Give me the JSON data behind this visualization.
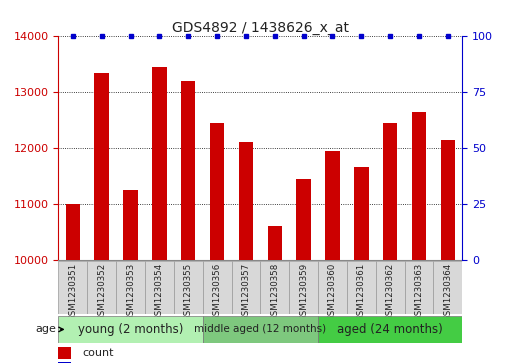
{
  "title": "GDS4892 / 1438626_x_at",
  "samples": [
    "GSM1230351",
    "GSM1230352",
    "GSM1230353",
    "GSM1230354",
    "GSM1230355",
    "GSM1230356",
    "GSM1230357",
    "GSM1230358",
    "GSM1230359",
    "GSM1230360",
    "GSM1230361",
    "GSM1230362",
    "GSM1230363",
    "GSM1230364"
  ],
  "counts": [
    11000,
    13350,
    11250,
    13450,
    13200,
    12450,
    12100,
    10600,
    11450,
    11950,
    11650,
    12450,
    12650,
    12150
  ],
  "bar_color": "#cc0000",
  "percentile_color": "#0000cc",
  "ylim_left": [
    10000,
    14000
  ],
  "ylim_right": [
    0,
    100
  ],
  "yticks_left": [
    10000,
    11000,
    12000,
    13000,
    14000
  ],
  "yticks_right": [
    0,
    25,
    50,
    75,
    100
  ],
  "groups": [
    {
      "label": "young (2 months)",
      "start": 0,
      "end": 5,
      "color": "#b2f0b2",
      "fontsize": 8.5
    },
    {
      "label": "middle aged (12 months)",
      "start": 5,
      "end": 9,
      "color": "#7ec87e",
      "fontsize": 7.5
    },
    {
      "label": "aged (24 months)",
      "start": 9,
      "end": 14,
      "color": "#44cc44",
      "fontsize": 8.5
    }
  ],
  "title_fontsize": 10,
  "tick_fontsize": 8,
  "bar_width": 0.5,
  "grid_color": "#000000",
  "background_color": "#ffffff"
}
